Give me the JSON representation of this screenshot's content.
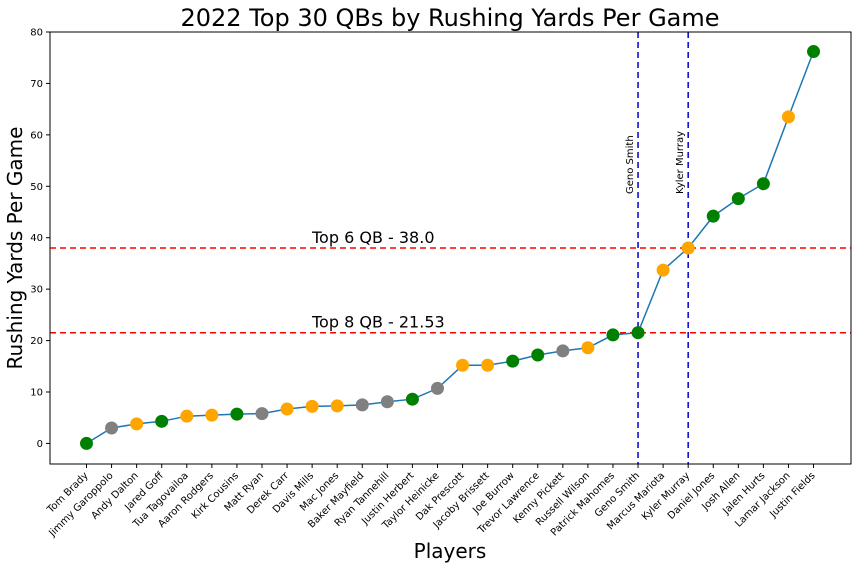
{
  "chart_data": {
    "type": "line",
    "title": "2022 Top 30 QBs by Rushing Yards Per Game",
    "xlabel": "Players",
    "ylabel": "Rushing Yards Per Game",
    "ylim": [
      -4,
      80
    ],
    "yticks": [
      0,
      10,
      20,
      30,
      40,
      50,
      60,
      70,
      80
    ],
    "grid": false,
    "categories": [
      "Tom Brady",
      "Jimmy Garoppolo",
      "Andy Dalton",
      "Jared Goff",
      "Tua Tagovailoa",
      "Aaron Rodgers",
      "Kirk Cousins",
      "Matt Ryan",
      "Derek Carr",
      "Davis Mills",
      "Mac Jones",
      "Baker Mayfield",
      "Ryan Tannehill",
      "Justin Herbert",
      "Taylor Heinicke",
      "Dak Prescott",
      "Jacoby Brissett",
      "Joe Burrow",
      "Trevor Lawrence",
      "Kenny Pickett",
      "Russell Wilson",
      "Patrick Mahomes",
      "Geno Smith",
      "Marcus Mariota",
      "Kyler Murray",
      "Daniel Jones",
      "Josh Allen",
      "Jalen Hurts",
      "Lamar Jackson",
      "Justin Fields"
    ],
    "values": [
      0.0,
      3.0,
      3.8,
      4.3,
      5.3,
      5.5,
      5.7,
      5.8,
      6.7,
      7.2,
      7.3,
      7.5,
      8.1,
      8.6,
      10.7,
      15.2,
      15.2,
      16.0,
      17.2,
      18.0,
      18.6,
      21.1,
      21.53,
      33.7,
      38.0,
      44.2,
      47.6,
      50.5,
      63.5,
      76.2
    ],
    "point_colors": [
      "#008000",
      "#808080",
      "#FFA500",
      "#008000",
      "#FFA500",
      "#FFA500",
      "#008000",
      "#808080",
      "#FFA500",
      "#FFA500",
      "#FFA500",
      "#808080",
      "#808080",
      "#008000",
      "#808080",
      "#FFA500",
      "#FFA500",
      "#008000",
      "#008000",
      "#808080",
      "#FFA500",
      "#008000",
      "#008000",
      "#FFA500",
      "#FFA500",
      "#008000",
      "#008000",
      "#008000",
      "#FFA500",
      "#008000"
    ],
    "line_color": "#1f77b4",
    "hlines": [
      {
        "value": 38.0,
        "label": "Top 6 QB - 38.0",
        "color": "#ff0000"
      },
      {
        "value": 21.53,
        "label": "Top 8 QB - 21.53",
        "color": "#ff0000"
      }
    ],
    "vlines": [
      {
        "category": "Geno Smith",
        "label": "Geno Smith",
        "color": "#0000cc"
      },
      {
        "category": "Kyler Murray",
        "label": "Kyler Murray",
        "color": "#0000cc"
      }
    ]
  }
}
